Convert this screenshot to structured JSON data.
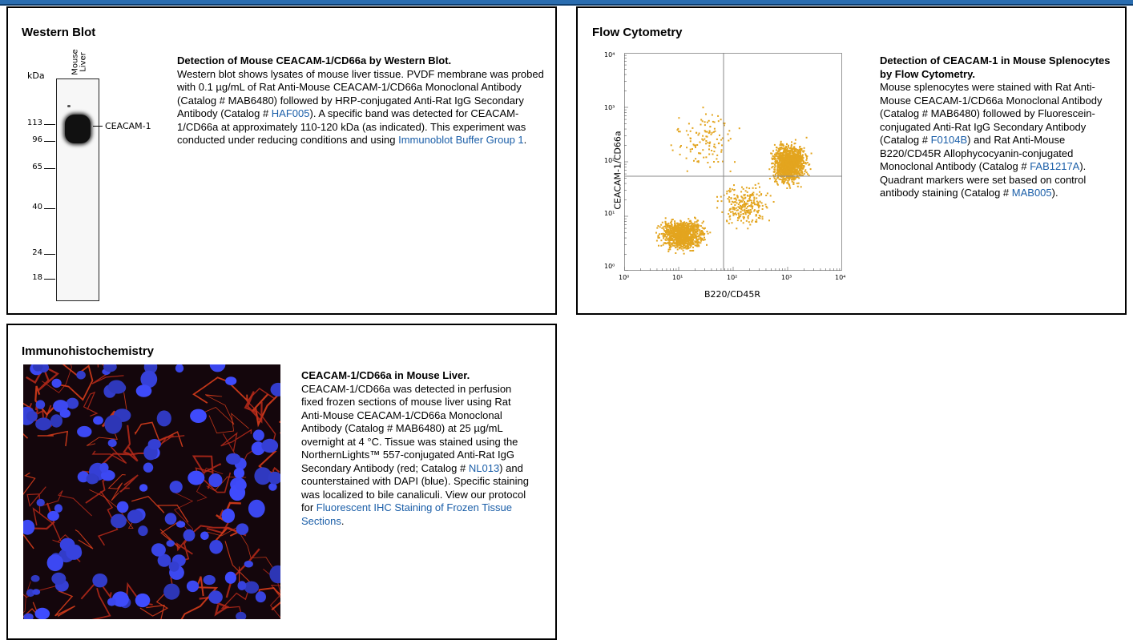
{
  "western": {
    "title": "Western Blot",
    "unit": "kDa",
    "lane_label_1": "Mouse",
    "lane_label_2": "Liver",
    "band_label": "CEACAM-1",
    "markers": [
      "113",
      "96",
      "65",
      "40",
      "24",
      "18"
    ],
    "desc_title": "Detection of Mouse CEACAM-1/CD66a by Western Blot.",
    "desc_p1": "Western blot shows lysates of mouse liver tissue. PVDF membrane was probed with 0.1 µg/mL of Rat Anti-Mouse CEACAM-1/CD66a Monoclonal Antibody (Catalog # MAB6480) followed by HRP-conjugated Anti-Rat IgG Secondary Antibody (Catalog # ",
    "link1": "HAF005",
    "desc_p2": "). A specific band was detected for CEACAM-1/CD66a at approximately 110-120 kDa (as indicated). This experiment was conducted under reducing conditions and using ",
    "link2": "Immunoblot Buffer Group 1",
    "desc_p3": "."
  },
  "flow": {
    "title": "Flow Cytometry",
    "ylabel": "CEACAM-1/CD66a",
    "xlabel": "B220/CD45R",
    "y_ticks": [
      "10⁴",
      "10³",
      "10²",
      "10¹",
      "10⁰"
    ],
    "x_ticks": [
      "10⁰",
      "10¹",
      "10²",
      "10³",
      "10⁴"
    ],
    "desc_title": "Detection of CEACAM-1 in Mouse Splenocytes by Flow Cytometry.",
    "desc_p1": "Mouse splenocytes were stained with Rat Anti-Mouse CEACAM-1/CD66a Monoclonal Antibody (Catalog # MAB6480) followed by Fluorescein-conjugated Anti-Rat IgG Secondary Antibody (Catalog # ",
    "link1": "F0104B",
    "desc_p2": ") and Rat Anti-Mouse B220/CD45R Allophycocyanin-conjugated Monoclonal Antibody (Catalog # ",
    "link2": "FAB1217A",
    "desc_p3": "). Quadrant markers were set based on control antibody staining (Catalog # ",
    "link3": "MAB005",
    "desc_p4": ").",
    "dot_color": "#e3a51f"
  },
  "ihc": {
    "title": "Immunohistochemistry",
    "desc_title": "CEACAM-1/CD66a in Mouse Liver.",
    "desc_p1": "CEACAM-1/CD66a was detected in perfusion fixed frozen sections of mouse liver using Rat Anti-Mouse CEACAM-1/CD66a Monoclonal Antibody (Catalog # MAB6480) at 25 µg/mL overnight at 4 °C. Tissue was stained using the NorthernLights™ 557-conjugated Anti-Rat IgG Secondary Antibody (red; Catalog # ",
    "link1": "NL013",
    "desc_p2": ") and counterstained with DAPI (blue). Specific staining was localized to bile canaliculi. View our protocol for ",
    "link2": "Fluorescent IHC Staining of Frozen Tissue Sections",
    "desc_p3": "."
  }
}
